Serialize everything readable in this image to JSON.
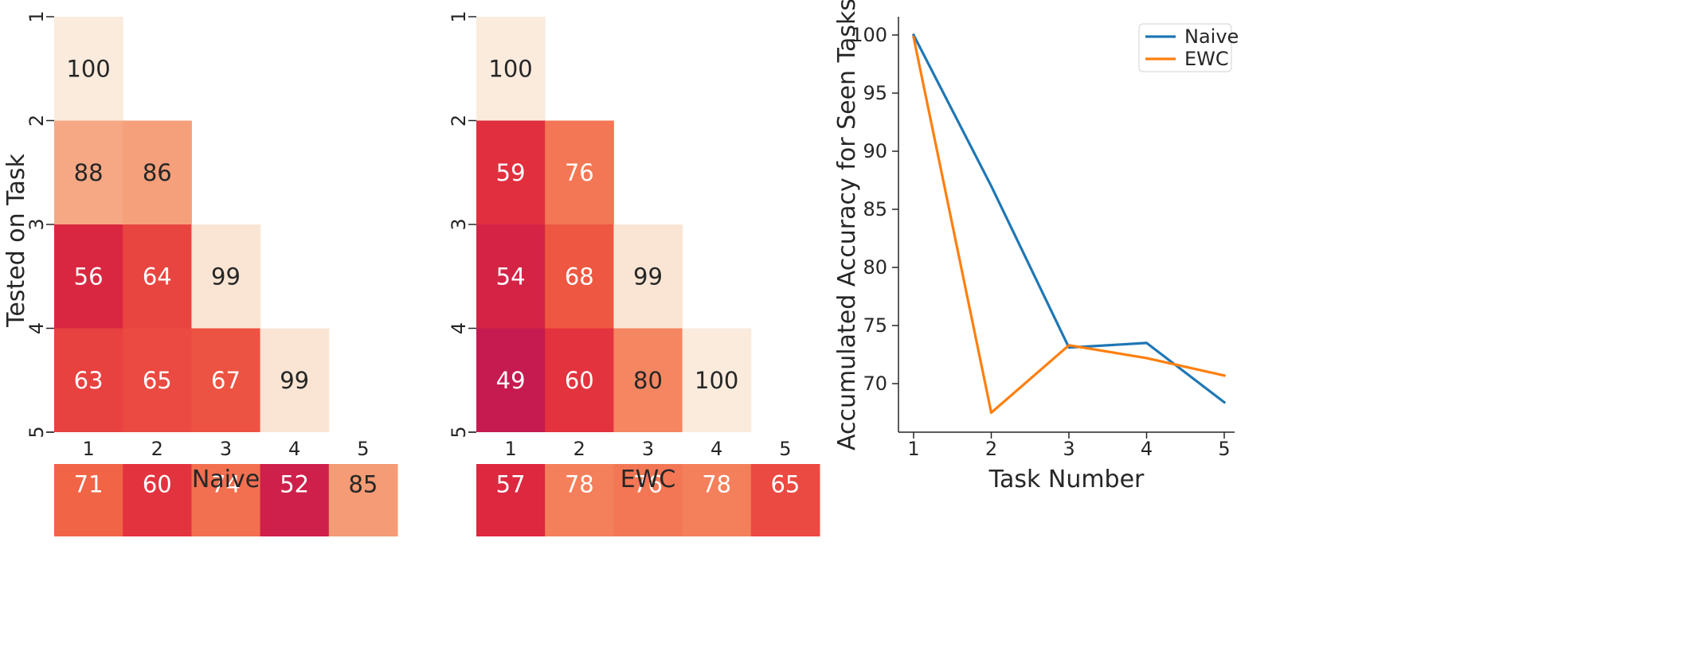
{
  "chart_data": [
    {
      "type": "heatmap",
      "xlabel": "Naive",
      "ylabel": "Tested on Task",
      "x_categories": [
        "1",
        "2",
        "3",
        "4",
        "5"
      ],
      "y_categories": [
        "1",
        "2",
        "3",
        "4",
        "5"
      ],
      "matrix": [
        [
          100,
          null,
          null,
          null,
          null
        ],
        [
          88,
          86,
          null,
          null,
          null
        ],
        [
          56,
          64,
          99,
          null,
          null
        ],
        [
          63,
          65,
          67,
          99,
          null
        ],
        [
          71,
          60,
          74,
          52,
          85
        ]
      ]
    },
    {
      "type": "heatmap",
      "xlabel": "EWC",
      "ylabel": "",
      "x_categories": [
        "1",
        "2",
        "3",
        "4",
        "5"
      ],
      "y_categories": [
        "1",
        "2",
        "3",
        "4",
        "5"
      ],
      "matrix": [
        [
          100,
          null,
          null,
          null,
          null
        ],
        [
          59,
          76,
          null,
          null,
          null
        ],
        [
          54,
          68,
          99,
          null,
          null
        ],
        [
          49,
          60,
          80,
          100,
          null
        ],
        [
          57,
          78,
          76,
          78,
          65
        ]
      ]
    },
    {
      "type": "line",
      "xlabel": "Task Number",
      "ylabel": "Accumulated Accuracy for Seen Tasks",
      "x": [
        1,
        2,
        3,
        4,
        5
      ],
      "xticks": [
        "1",
        "2",
        "3",
        "4",
        "5"
      ],
      "yticks": [
        "70",
        "75",
        "80",
        "85",
        "90",
        "95",
        "100"
      ],
      "ylim": [
        65.8,
        101.5
      ],
      "legend_position": "top-right",
      "series": [
        {
          "name": "Naive",
          "color": "#1f77b4",
          "values": [
            100,
            87,
            73.1,
            73.5,
            68.4
          ]
        },
        {
          "name": "EWC",
          "color": "#ff7f0e",
          "values": [
            99.8,
            67.5,
            73.3,
            72.2,
            70.7
          ]
        }
      ]
    }
  ]
}
